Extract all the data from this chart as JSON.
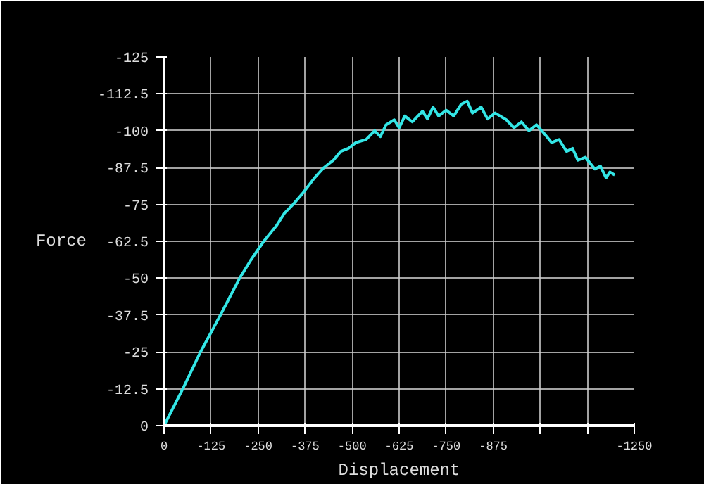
{
  "chart_data": {
    "type": "line",
    "xlabel": "Displacement",
    "ylabel": "Force",
    "xlim": [
      0,
      -1250
    ],
    "ylim": [
      0,
      -125
    ],
    "xticks": [
      0,
      -125,
      -250,
      -375,
      -500,
      -625,
      -750,
      -875,
      {
        "value": -1000,
        "label": null
      },
      {
        "value": -1125,
        "label": null
      },
      -1250
    ],
    "yticks": [
      0,
      -12.5,
      -25,
      -37.5,
      -50,
      -62.5,
      -75,
      -87.5,
      -100,
      -112.5,
      -125
    ],
    "grid": true,
    "series": [
      {
        "color": "#33e6e6",
        "x": [
          0,
          -20,
          -50,
          -97,
          -150,
          -201,
          -230,
          -265,
          -300,
          -320,
          -343,
          -370,
          -400,
          -425,
          -450,
          -470,
          -490,
          -510,
          -537,
          -560,
          -575,
          -590,
          -612,
          -625,
          -640,
          -660,
          -687,
          -700,
          -715,
          -730,
          -750,
          -770,
          -790,
          -806,
          -820,
          -843,
          -860,
          -880,
          -910,
          -930,
          -950,
          -970,
          -990,
          -1011,
          -1030,
          -1050,
          -1070,
          -1086,
          -1100,
          -1120,
          -1145,
          -1160,
          -1175,
          -1185,
          -1198
        ],
        "values": [
          0,
          -5,
          -12.5,
          -25,
          -37.5,
          -50,
          -56,
          -62.5,
          -68,
          -72,
          -75,
          -79,
          -84,
          -87.5,
          -90,
          -93,
          -94,
          -96,
          -97,
          -100,
          -98,
          -102,
          -103.7,
          -101,
          -105,
          -103,
          -106.6,
          -104,
          -108,
          -105,
          -107,
          -105,
          -109,
          -110,
          -106,
          -108,
          -104,
          -106,
          -103.7,
          -101,
          -103,
          -100,
          -102,
          -99,
          -96,
          -97,
          -93,
          -94,
          -90,
          -91,
          -87,
          -88,
          -84,
          -86,
          -85
        ]
      }
    ]
  }
}
